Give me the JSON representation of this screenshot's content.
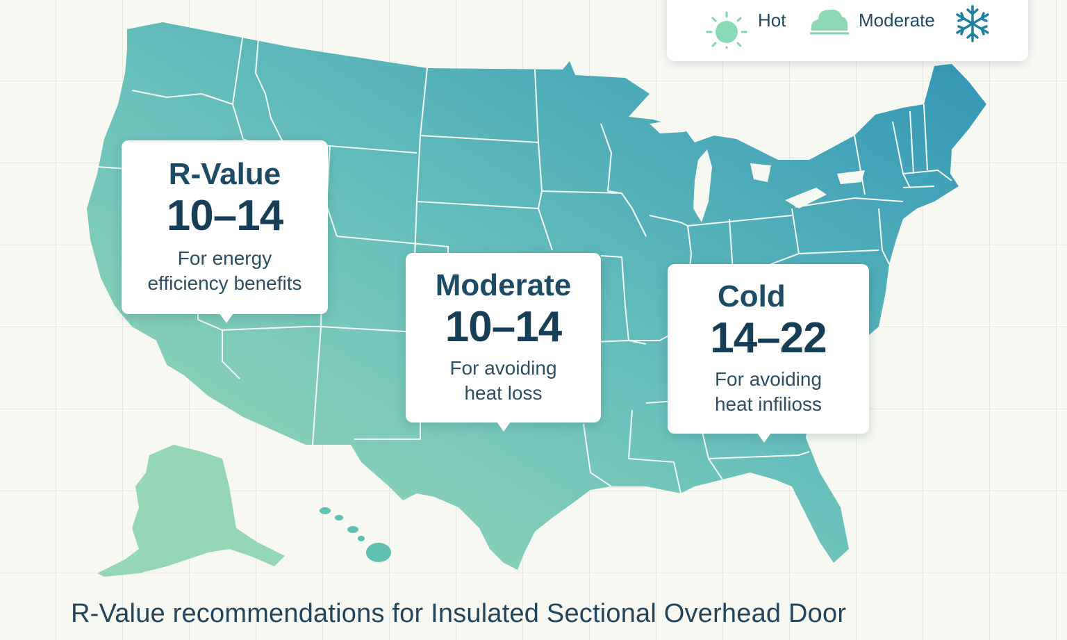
{
  "legend": {
    "items": [
      {
        "label": "Hot",
        "icon": "sun-icon"
      },
      {
        "label": "Moderate",
        "icon": "cloud-icon"
      },
      {
        "label": "",
        "icon": "snowflake-icon"
      }
    ]
  },
  "callouts": [
    {
      "zone": "R-Value",
      "range": "10–14",
      "note_line1": "For energy",
      "note_line2": "efficiency benefits"
    },
    {
      "zone": "Moderate",
      "range": "10–14",
      "note_line1": "For avoiding",
      "note_line2": "heat loss"
    },
    {
      "zone": "Cold",
      "range": "14–22",
      "note_line1": "For avoiding",
      "note_line2": "heat infilioss"
    }
  ],
  "footer": {
    "title": "R-Value recommendations for Insulated Sectional Overhead Door"
  },
  "colors": {
    "map_warm": "#9bd7b4",
    "map_mid": "#68c0bd",
    "map_cold": "#3497b5",
    "text_dark": "#1c4b66",
    "sun": "#7fd6b0",
    "snowflake": "#1f7fa0"
  }
}
